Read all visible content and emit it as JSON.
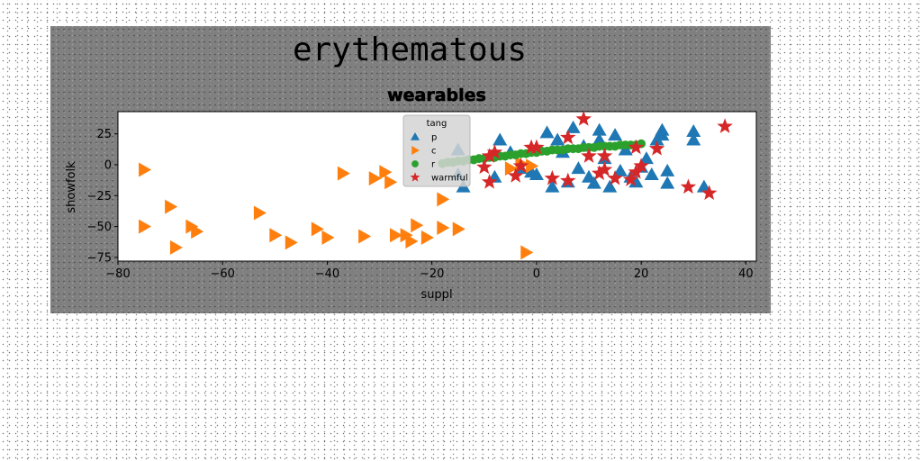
{
  "figure": {
    "suptitle": "erythematous"
  },
  "chart_data": {
    "type": "scatter",
    "title": "wearables",
    "xlabel": "suppl",
    "ylabel": "showfolk",
    "xlim": [
      -80,
      42
    ],
    "ylim": [
      -78,
      43
    ],
    "xticks": [
      -80,
      -60,
      -40,
      -20,
      0,
      20,
      40
    ],
    "yticks": [
      -75,
      -50,
      -25,
      0,
      25
    ],
    "grid": false,
    "legend": {
      "title": "tang",
      "placement": "upper-center"
    },
    "series": [
      {
        "name": "p",
        "marker": "triangle-up",
        "color": "#1f77b4",
        "points": [
          [
            -15,
            -8
          ],
          [
            -15,
            12
          ],
          [
            -14,
            -18
          ],
          [
            -8,
            -10
          ],
          [
            -7,
            20
          ],
          [
            -5,
            10
          ],
          [
            -3,
            -3
          ],
          [
            -1,
            -6
          ],
          [
            0,
            -8
          ],
          [
            2,
            26
          ],
          [
            3,
            -18
          ],
          [
            4,
            20
          ],
          [
            5,
            10
          ],
          [
            6,
            -14
          ],
          [
            7,
            30
          ],
          [
            8,
            -3
          ],
          [
            9,
            15
          ],
          [
            10,
            -10
          ],
          [
            11,
            -15
          ],
          [
            12,
            28
          ],
          [
            12,
            20
          ],
          [
            13,
            5
          ],
          [
            14,
            -18
          ],
          [
            15,
            24
          ],
          [
            16,
            -5
          ],
          [
            17,
            12
          ],
          [
            18,
            -10
          ],
          [
            19,
            -14
          ],
          [
            20,
            -2
          ],
          [
            21,
            5
          ],
          [
            22,
            -8
          ],
          [
            23,
            20
          ],
          [
            24,
            24
          ],
          [
            24,
            28
          ],
          [
            25,
            -15
          ],
          [
            25,
            -5
          ],
          [
            30,
            20
          ],
          [
            30,
            27
          ],
          [
            32,
            -18
          ]
        ]
      },
      {
        "name": "c",
        "marker": "triangle-right",
        "color": "#ff7f0e",
        "points": [
          [
            -75,
            -4
          ],
          [
            -75,
            -50
          ],
          [
            -70,
            -34
          ],
          [
            -69,
            -67
          ],
          [
            -66,
            -50
          ],
          [
            -65,
            -54
          ],
          [
            -53,
            -39
          ],
          [
            -50,
            -57
          ],
          [
            -47,
            -63
          ],
          [
            -42,
            -52
          ],
          [
            -40,
            -59
          ],
          [
            -37,
            -7
          ],
          [
            -33,
            -58
          ],
          [
            -31,
            -11
          ],
          [
            -29,
            -6
          ],
          [
            -28,
            -14
          ],
          [
            -27,
            -57
          ],
          [
            -25,
            -57
          ],
          [
            -24,
            -62
          ],
          [
            -23,
            -49
          ],
          [
            -21,
            -59
          ],
          [
            -18,
            -51
          ],
          [
            -18,
            -28
          ],
          [
            -15,
            -52
          ],
          [
            -2,
            -71
          ],
          [
            -5,
            -3
          ],
          [
            -3,
            1
          ],
          [
            -1,
            -1
          ]
        ]
      },
      {
        "name": "r",
        "marker": "circle",
        "color": "#2ca02c",
        "points": [
          [
            -18,
            1
          ],
          [
            -17,
            2
          ],
          [
            -16,
            2
          ],
          [
            -15,
            3
          ],
          [
            -14,
            3
          ],
          [
            -13,
            4
          ],
          [
            -12,
            4
          ],
          [
            -11,
            5
          ],
          [
            -10,
            5
          ],
          [
            -9,
            6
          ],
          [
            -8,
            6
          ],
          [
            -7,
            7
          ],
          [
            -6,
            7
          ],
          [
            -5,
            8
          ],
          [
            -4,
            8
          ],
          [
            -3,
            9
          ],
          [
            -2,
            9
          ],
          [
            -1,
            10
          ],
          [
            0,
            10
          ],
          [
            1,
            11
          ],
          [
            2,
            11
          ],
          [
            3,
            12
          ],
          [
            4,
            12
          ],
          [
            5,
            12
          ],
          [
            6,
            13
          ],
          [
            7,
            13
          ],
          [
            8,
            13
          ],
          [
            9,
            14
          ],
          [
            10,
            14
          ],
          [
            11,
            14
          ],
          [
            12,
            15
          ],
          [
            13,
            15
          ],
          [
            14,
            15
          ],
          [
            15,
            15
          ],
          [
            16,
            16
          ],
          [
            17,
            16
          ],
          [
            18,
            16
          ],
          [
            19,
            16
          ],
          [
            20,
            17
          ]
        ]
      },
      {
        "name": "warmful",
        "marker": "star",
        "color": "#d62728",
        "points": [
          [
            -10,
            -2
          ],
          [
            -9,
            -14
          ],
          [
            -9,
            7
          ],
          [
            -8,
            10
          ],
          [
            -4,
            -9
          ],
          [
            -3,
            -1
          ],
          [
            -1,
            14
          ],
          [
            0,
            14
          ],
          [
            3,
            -11
          ],
          [
            6,
            -13
          ],
          [
            6,
            22
          ],
          [
            9,
            37
          ],
          [
            10,
            7
          ],
          [
            12,
            -7
          ],
          [
            13,
            -4
          ],
          [
            13,
            7
          ],
          [
            15,
            -11
          ],
          [
            18,
            -12
          ],
          [
            19,
            14
          ],
          [
            19,
            -6
          ],
          [
            20,
            -1
          ],
          [
            23,
            13
          ],
          [
            29,
            -18
          ],
          [
            33,
            -23
          ],
          [
            36,
            31
          ]
        ]
      }
    ]
  }
}
